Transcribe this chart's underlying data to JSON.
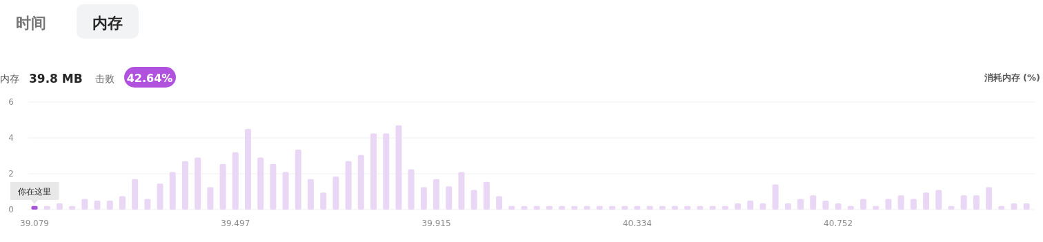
{
  "chart_data": {
    "type": "bar",
    "ylabel": "消耗内存 (%)",
    "categories": [
      "39.079",
      null,
      null,
      null,
      null,
      null,
      null,
      null,
      null,
      null,
      null,
      null,
      null,
      null,
      null,
      null,
      "39.497",
      null,
      null,
      null,
      null,
      null,
      null,
      null,
      null,
      null,
      null,
      null,
      null,
      null,
      null,
      null,
      "39.915",
      null,
      null,
      null,
      null,
      null,
      null,
      null,
      null,
      null,
      null,
      null,
      null,
      null,
      null,
      null,
      "40.334",
      null,
      null,
      null,
      null,
      null,
      null,
      null,
      null,
      null,
      null,
      null,
      null,
      null,
      null,
      null,
      "40.752",
      null,
      null,
      null,
      null,
      null,
      null,
      null,
      null,
      null,
      null,
      null,
      null,
      null,
      null,
      null
    ],
    "values": [
      0.2,
      0.2,
      0.35,
      0.2,
      0.6,
      0.5,
      0.5,
      0.75,
      1.7,
      0.6,
      1.45,
      2.1,
      2.7,
      2.9,
      1.25,
      2.55,
      3.2,
      4.5,
      2.9,
      2.55,
      2.1,
      3.35,
      1.7,
      0.95,
      1.85,
      2.7,
      3.05,
      4.25,
      4.25,
      4.7,
      2.25,
      1.25,
      1.7,
      1.3,
      2.1,
      1.1,
      1.55,
      0.75,
      0.2,
      0.2,
      0.2,
      0.2,
      0.2,
      0.2,
      0.2,
      0.2,
      0.2,
      0.2,
      0.2,
      0.2,
      0.2,
      0.2,
      0.2,
      0.2,
      0.2,
      0.2,
      0.35,
      0.5,
      0.35,
      1.4,
      0.35,
      0.6,
      0.8,
      0.5,
      0.35,
      0.2,
      0.6,
      0.2,
      0.6,
      0.8,
      0.6,
      0.95,
      1.1,
      0.2,
      0.8,
      0.8,
      1.25,
      0.2,
      0.35,
      0.35
    ],
    "colors": [
      "#a855d8",
      "#ead7f6",
      "#ead7f6",
      "#ead7f6",
      "#ead7f6",
      "#ead7f6",
      "#ead7f6",
      "#ead7f6",
      "#ead7f6",
      "#ead7f6",
      "#ead7f6",
      "#ead7f6",
      "#ead7f6",
      "#ead7f6",
      "#ead7f6",
      "#ead7f6",
      "#ead7f6",
      "#ead7f6",
      "#ead7f6",
      "#ead7f6",
      "#ead7f6",
      "#ead7f6",
      "#ead7f6",
      "#ead7f6",
      "#ead7f6",
      "#ead7f6",
      "#ead7f6",
      "#ead7f6",
      "#ead7f6",
      "#ead7f6",
      "#ead7f6",
      "#ead7f6",
      "#ead7f6",
      "#ead7f6",
      "#ead7f6",
      "#ead7f6",
      "#ead7f6",
      "#ead7f6",
      "#ead7f6",
      "#ead7f6",
      "#ead7f6",
      "#ead7f6",
      "#ead7f6",
      "#ead7f6",
      "#ead7f6",
      "#ead7f6",
      "#ead7f6",
      "#ead7f6",
      "#ead7f6",
      "#ead7f6",
      "#ead7f6",
      "#ead7f6",
      "#ead7f6",
      "#ead7f6",
      "#ead7f6",
      "#ead7f6",
      "#ead7f6",
      "#ead7f6",
      "#ead7f6",
      "#ead7f6",
      "#ead7f6",
      "#ead7f6",
      "#ead7f6",
      "#ead7f6",
      "#ead7f6",
      "#ead7f6",
      "#ead7f6",
      "#ead7f6",
      "#ead7f6",
      "#ead7f6",
      "#ead7f6",
      "#ead7f6",
      "#ead7f6",
      "#ead7f6",
      "#ead7f6",
      "#ead7f6",
      "#ead7f6",
      "#ead7f6",
      "#ead7f6",
      "#ead7f6"
    ],
    "ylim": [
      0,
      6
    ],
    "yticks": [
      0,
      2,
      4,
      6
    ],
    "grid": "y",
    "annotations": [
      "时间",
      "内存",
      "内存",
      "39.8 MB",
      "击败",
      "42.64%",
      "你在这里"
    ]
  }
}
